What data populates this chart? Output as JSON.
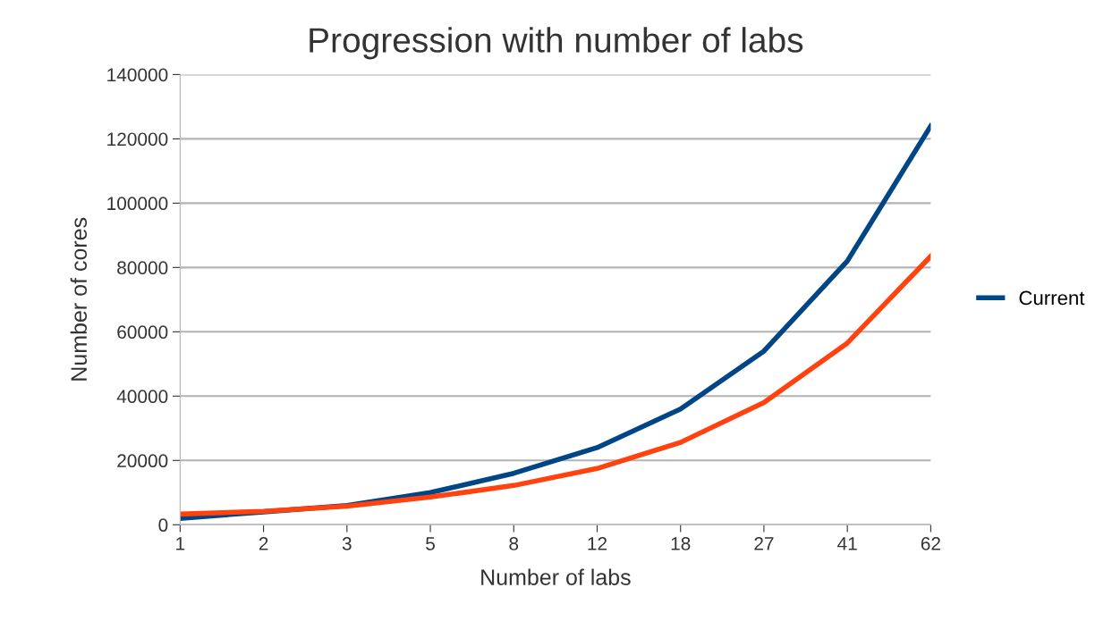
{
  "chart_data": {
    "type": "line",
    "title": "Progression with number of labs",
    "xlabel": "Number of labs",
    "ylabel": "Number of cores",
    "categories": [
      "1",
      "2",
      "3",
      "5",
      "8",
      "12",
      "18",
      "27",
      "41",
      "62"
    ],
    "series": [
      {
        "name": "Current",
        "color": "#004586",
        "values": [
          2000,
          4000,
          6000,
          10000,
          16000,
          24000,
          36000,
          54000,
          82000,
          124000
        ]
      },
      {
        "color": "#ff420e",
        "values": [
          3300,
          4200,
          5800,
          8600,
          12200,
          17500,
          25600,
          38000,
          56500,
          83500
        ]
      }
    ],
    "ylim": [
      0,
      140000
    ],
    "yticks": [
      0,
      20000,
      40000,
      60000,
      80000,
      100000,
      120000,
      140000
    ],
    "grid": "y",
    "legend": "right",
    "marker": "none",
    "line_style": "solid"
  }
}
